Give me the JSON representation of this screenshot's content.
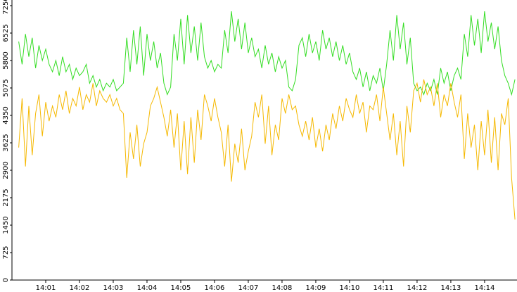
{
  "chart_data": {
    "type": "line",
    "x": [
      0.2,
      0.3,
      0.4,
      0.5,
      0.6,
      0.7,
      0.8,
      0.9,
      1.0,
      1.1,
      1.2,
      1.3,
      1.4,
      1.5,
      1.6,
      1.7,
      1.8,
      1.9,
      2.0,
      2.1,
      2.2,
      2.3,
      2.4,
      2.5,
      2.6,
      2.7,
      2.8,
      2.9,
      3.0,
      3.1,
      3.2,
      3.3,
      3.4,
      3.5,
      3.6,
      3.7,
      3.8,
      3.9,
      4.0,
      4.1,
      4.2,
      4.3,
      4.4,
      4.5,
      4.6,
      4.7,
      4.8,
      4.9,
      5.0,
      5.1,
      5.2,
      5.3,
      5.4,
      5.5,
      5.6,
      5.7,
      5.8,
      5.9,
      6.0,
      6.1,
      6.2,
      6.3,
      6.4,
      6.5,
      6.6,
      6.7,
      6.8,
      6.9,
      7.0,
      7.1,
      7.2,
      7.3,
      7.4,
      7.5,
      7.6,
      7.7,
      7.8,
      7.9,
      8.0,
      8.1,
      8.2,
      8.3,
      8.4,
      8.5,
      8.6,
      8.7,
      8.8,
      8.9,
      9.0,
      9.1,
      9.2,
      9.3,
      9.4,
      9.5,
      9.6,
      9.7,
      9.8,
      9.9,
      10.0,
      10.1,
      10.2,
      10.3,
      10.4,
      10.5,
      10.6,
      10.7,
      10.8,
      10.9,
      11.0,
      11.1,
      11.2,
      11.3,
      11.4,
      11.5,
      11.6,
      11.7,
      11.8,
      11.9,
      12.0,
      12.1,
      12.2,
      12.3,
      12.4,
      12.5,
      12.6,
      12.7,
      12.8,
      12.9,
      13.0,
      13.1,
      13.2,
      13.3,
      13.4,
      13.5,
      13.6,
      13.7,
      13.8,
      13.9,
      14.0,
      14.1,
      14.2,
      14.3,
      14.4,
      14.5,
      14.6,
      14.7,
      14.8,
      14.9
    ],
    "series": [
      {
        "color": "#33dd22",
        "values": [
          6300,
          5700,
          6500,
          5900,
          6400,
          5600,
          6200,
          5800,
          6100,
          5700,
          5500,
          5800,
          5400,
          5900,
          5500,
          5700,
          5300,
          5600,
          5400,
          5500,
          5700,
          5200,
          5400,
          5100,
          5300,
          5000,
          5200,
          5100,
          5300,
          5000,
          5100,
          5200,
          6400,
          5500,
          6600,
          5700,
          6700,
          5400,
          6500,
          5800,
          6300,
          5600,
          6000,
          5200,
          4900,
          5100,
          6500,
          5800,
          6900,
          5700,
          7000,
          6000,
          6700,
          5800,
          6800,
          5900,
          5600,
          5800,
          5500,
          5700,
          5600,
          6600,
          6000,
          7100,
          6300,
          6900,
          6100,
          6800,
          6000,
          6400,
          5900,
          6100,
          5600,
          6200,
          5700,
          6000,
          5500,
          5900,
          5600,
          5800,
          5100,
          5000,
          5300,
          6200,
          6400,
          5900,
          6500,
          6000,
          6300,
          5800,
          6600,
          6100,
          6400,
          5900,
          6300,
          5800,
          6200,
          5700,
          6000,
          5500,
          5300,
          5600,
          5100,
          5500,
          5000,
          5400,
          5200,
          5600,
          5000,
          5700,
          6600,
          5800,
          7000,
          6100,
          6800,
          5700,
          6400,
          5200,
          5000,
          5100,
          4900,
          5200,
          5000,
          5300,
          4900,
          5600,
          5200,
          5500,
          5000,
          5400,
          5600,
          5300,
          6500,
          5900,
          7000,
          6200,
          6900,
          6000,
          7100,
          6300,
          6800,
          6100,
          6700,
          5800,
          5400,
          5200,
          4900,
          5300
        ]
      },
      {
        "color": "#f5b800",
        "values": [
          3500,
          4800,
          3000,
          4600,
          3300,
          4400,
          4900,
          3800,
          4700,
          4200,
          4600,
          4300,
          4900,
          4500,
          5000,
          4400,
          4800,
          4600,
          5100,
          4500,
          4900,
          4700,
          5200,
          4600,
          5000,
          4800,
          4700,
          4900,
          4600,
          4800,
          4500,
          4400,
          2700,
          3900,
          3200,
          4100,
          3000,
          3600,
          3900,
          4600,
          4800,
          5100,
          4700,
          4300,
          3800,
          4500,
          3500,
          4400,
          2900,
          4200,
          2800,
          4300,
          3100,
          4500,
          3700,
          4900,
          4600,
          4200,
          4800,
          4300,
          3900,
          3000,
          4100,
          2600,
          3600,
          3100,
          4000,
          2900,
          3400,
          3800,
          4700,
          4300,
          4900,
          3600,
          4600,
          3300,
          4100,
          3700,
          4800,
          4400,
          4900,
          4500,
          4600,
          4100,
          3800,
          4200,
          3700,
          4300,
          3500,
          4000,
          3400,
          4100,
          3700,
          4400,
          4000,
          4600,
          4200,
          4800,
          4500,
          4300,
          4900,
          4400,
          4700,
          3900,
          4600,
          4500,
          4900,
          4200,
          5100,
          4400,
          3700,
          4400,
          3300,
          4200,
          3000,
          4600,
          3900,
          5000,
          5200,
          4700,
          5300,
          4900,
          5100,
          4600,
          5200,
          4300,
          4900,
          4600,
          5200,
          4700,
          4300,
          4900,
          3200,
          4400,
          3500,
          4100,
          2900,
          4200,
          3300,
          4500,
          3100,
          4300,
          2900,
          4400,
          4100,
          4800,
          2700,
          1600
        ]
      }
    ],
    "xlim": [
      0,
      14.96
    ],
    "xticks": [
      {
        "value": 1,
        "label": "14:01"
      },
      {
        "value": 2,
        "label": "14:02"
      },
      {
        "value": 3,
        "label": "14:03"
      },
      {
        "value": 4,
        "label": "14:04"
      },
      {
        "value": 5,
        "label": "14:05"
      },
      {
        "value": 6,
        "label": "14:06"
      },
      {
        "value": 7,
        "label": "14:07"
      },
      {
        "value": 8,
        "label": "14:08"
      },
      {
        "value": 9,
        "label": "14:09"
      },
      {
        "value": 10,
        "label": "14:10"
      },
      {
        "value": 11,
        "label": "14:11"
      },
      {
        "value": 12,
        "label": "14:12"
      },
      {
        "value": 13,
        "label": "14:13"
      },
      {
        "value": 14,
        "label": "14:14"
      }
    ],
    "ylim": [
      0,
      7250
    ],
    "yticks": [
      0,
      725,
      1450,
      2175,
      2900,
      3625,
      4350,
      5075,
      5800,
      6525,
      7250
    ],
    "grid": false
  }
}
